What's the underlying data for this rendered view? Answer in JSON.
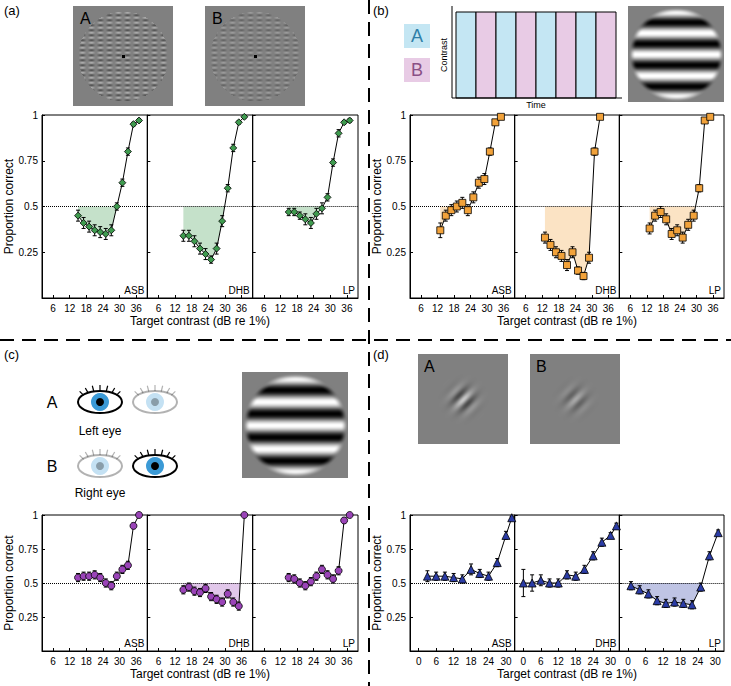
{
  "panels": [
    {
      "label": "(a)",
      "x_label": "Target contrast (dB re 1%)",
      "y_label": "Proportion correct",
      "inset_texts": [
        "A",
        "B"
      ]
    },
    {
      "label": "(b)",
      "x_label": "Target contrast (dB re 1%)",
      "y_label": "Proportion correct",
      "inset_texts": [
        "A",
        "B",
        "Contrast",
        "Time"
      ]
    },
    {
      "label": "(c)",
      "x_label": "Target contrast (dB re 1%)",
      "y_label": "Proportion correct",
      "inset_texts": [
        "A",
        "Left eye",
        "B",
        "Right eye"
      ]
    },
    {
      "label": "(d)",
      "x_label": "Target contrast (dB re 1%)",
      "y_label": "Proportion correct",
      "inset_texts": [
        "A",
        "B"
      ]
    }
  ],
  "chart_data": [
    {
      "panel": "(a)",
      "type": "line",
      "title": "ASB",
      "color": "#3f9b4f",
      "marker": "diamond",
      "x": [
        15,
        17,
        19,
        21,
        23,
        25,
        27,
        29,
        31,
        33,
        35,
        37
      ],
      "values": [
        0.45,
        0.41,
        0.39,
        0.37,
        0.36,
        0.35,
        0.37,
        0.5,
        0.63,
        0.8,
        0.95,
        0.97
      ],
      "errors": [
        0.03,
        0.03,
        0.03,
        0.03,
        0.03,
        0.03,
        0.03,
        0.02,
        0.02,
        0.02,
        0.01,
        0.01
      ],
      "reference_line": 0.5,
      "shade_below": 0.5,
      "xlim": [
        2,
        40
      ],
      "xticks": [
        6,
        12,
        18,
        24,
        30,
        36
      ],
      "ylim": [
        0,
        1
      ],
      "yticks": [
        0.25,
        0.5,
        0.75,
        1
      ]
    },
    {
      "panel": "(a)",
      "type": "line",
      "title": "DHB",
      "color": "#3f9b4f",
      "marker": "diamond",
      "x": [
        15,
        17,
        19,
        21,
        23,
        25,
        27,
        29,
        31,
        33,
        35,
        37
      ],
      "values": [
        0.34,
        0.34,
        0.31,
        0.27,
        0.24,
        0.21,
        0.27,
        0.42,
        0.6,
        0.82,
        0.96,
        0.99
      ],
      "errors": [
        0.03,
        0.03,
        0.03,
        0.03,
        0.03,
        0.02,
        0.03,
        0.03,
        0.02,
        0.02,
        0.01,
        0.01
      ],
      "reference_line": 0.5,
      "shade_below": 0.5,
      "xlim": [
        2,
        40
      ],
      "xticks": [
        6,
        12,
        18,
        24,
        30,
        36
      ],
      "ylim": [
        0,
        1
      ],
      "yticks": [
        0.25,
        0.5,
        0.75,
        1
      ]
    },
    {
      "panel": "(a)",
      "type": "line",
      "title": "LP",
      "color": "#3f9b4f",
      "marker": "diamond",
      "x": [
        15,
        17,
        19,
        21,
        23,
        25,
        27,
        29,
        31,
        33,
        35,
        37
      ],
      "values": [
        0.47,
        0.47,
        0.45,
        0.43,
        0.41,
        0.46,
        0.49,
        0.55,
        0.74,
        0.9,
        0.96,
        0.97
      ],
      "errors": [
        0.02,
        0.02,
        0.02,
        0.03,
        0.03,
        0.03,
        0.03,
        0.02,
        0.02,
        0.02,
        0.01,
        0.01
      ],
      "reference_line": 0.5,
      "shade_below": 0.5,
      "xlim": [
        2,
        40
      ],
      "xticks": [
        6,
        12,
        18,
        24,
        30,
        36
      ],
      "ylim": [
        0,
        1
      ],
      "yticks": [
        0.25,
        0.5,
        0.75,
        1
      ]
    },
    {
      "panel": "(b)",
      "type": "line",
      "title": "ASB",
      "color": "#f2a23a",
      "marker": "square",
      "x": [
        13,
        15,
        17,
        19,
        21,
        23,
        25,
        27,
        29,
        31,
        33,
        35
      ],
      "values": [
        0.37,
        0.45,
        0.48,
        0.5,
        0.52,
        0.48,
        0.55,
        0.63,
        0.65,
        0.8,
        0.96,
        0.99
      ],
      "errors": [
        0.04,
        0.03,
        0.03,
        0.03,
        0.03,
        0.03,
        0.03,
        0.03,
        0.03,
        0.02,
        0.01,
        0.01
      ],
      "reference_line": 0.5,
      "shade_below": 0.5,
      "xlim": [
        2,
        40
      ],
      "xticks": [
        6,
        12,
        18,
        24,
        30,
        36
      ],
      "ylim": [
        0,
        1
      ],
      "yticks": [
        0.25,
        0.5,
        0.75,
        1
      ]
    },
    {
      "panel": "(b)",
      "type": "line",
      "title": "DHB",
      "color": "#f2a23a",
      "marker": "square",
      "x": [
        13,
        15,
        17,
        19,
        21,
        23,
        25,
        27,
        29,
        31,
        33
      ],
      "values": [
        0.33,
        0.29,
        0.25,
        0.23,
        0.18,
        0.25,
        0.15,
        0.12,
        0.22,
        0.8,
        0.99
      ],
      "errors": [
        0.03,
        0.03,
        0.03,
        0.03,
        0.03,
        0.03,
        0.02,
        0.02,
        0.03,
        0.02,
        0.01
      ],
      "reference_line": 0.5,
      "shade_below": 0.5,
      "xlim": [
        2,
        40
      ],
      "xticks": [
        6,
        12,
        18,
        24,
        30,
        36
      ],
      "ylim": [
        0,
        1
      ],
      "yticks": [
        0.25,
        0.5,
        0.75,
        1
      ]
    },
    {
      "panel": "(b)",
      "type": "line",
      "title": "LP",
      "color": "#f2a23a",
      "marker": "square",
      "x": [
        13,
        15,
        17,
        19,
        21,
        23,
        25,
        27,
        29,
        31,
        33,
        35
      ],
      "values": [
        0.38,
        0.45,
        0.47,
        0.43,
        0.35,
        0.37,
        0.33,
        0.4,
        0.45,
        0.6,
        0.97,
        0.99
      ],
      "errors": [
        0.03,
        0.03,
        0.03,
        0.03,
        0.03,
        0.03,
        0.03,
        0.03,
        0.03,
        0.02,
        0.01,
        0.01
      ],
      "reference_line": 0.5,
      "shade_below": 0.5,
      "xlim": [
        2,
        40
      ],
      "xticks": [
        6,
        12,
        18,
        24,
        30,
        36
      ],
      "ylim": [
        0,
        1
      ],
      "yticks": [
        0.25,
        0.5,
        0.75,
        1
      ]
    },
    {
      "panel": "(c)",
      "type": "line",
      "title": "ASB",
      "color": "#9a44b8",
      "marker": "circle",
      "x": [
        15,
        17,
        19,
        21,
        23,
        25,
        27,
        29,
        31,
        33,
        35,
        37
      ],
      "values": [
        0.54,
        0.55,
        0.55,
        0.56,
        0.54,
        0.5,
        0.48,
        0.55,
        0.6,
        0.63,
        0.92,
        1.0
      ],
      "errors": [
        0.03,
        0.03,
        0.03,
        0.03,
        0.03,
        0.03,
        0.03,
        0.03,
        0.03,
        0.03,
        0.02,
        0.01
      ],
      "reference_line": 0.5,
      "xlim": [
        2,
        40
      ],
      "xticks": [
        6,
        12,
        18,
        24,
        30,
        36
      ],
      "ylim": [
        0,
        1
      ],
      "yticks": [
        0.25,
        0.5,
        0.75,
        1
      ]
    },
    {
      "panel": "(c)",
      "type": "line",
      "title": "DHB",
      "color": "#9a44b8",
      "marker": "circle",
      "x": [
        15,
        17,
        19,
        21,
        23,
        25,
        27,
        29,
        31,
        33,
        35,
        37
      ],
      "values": [
        0.45,
        0.47,
        0.44,
        0.43,
        0.46,
        0.4,
        0.38,
        0.36,
        0.42,
        0.36,
        0.33,
        1.0
      ],
      "errors": [
        0.03,
        0.03,
        0.03,
        0.03,
        0.03,
        0.03,
        0.03,
        0.03,
        0.03,
        0.03,
        0.03,
        0.01
      ],
      "reference_line": 0.5,
      "shade_below": 0.5,
      "xlim": [
        2,
        40
      ],
      "xticks": [
        6,
        12,
        18,
        24,
        30,
        36
      ],
      "ylim": [
        0,
        1
      ],
      "yticks": [
        0.25,
        0.5,
        0.75,
        1
      ]
    },
    {
      "panel": "(c)",
      "type": "line",
      "title": "LP",
      "color": "#9a44b8",
      "marker": "circle",
      "x": [
        15,
        17,
        19,
        21,
        23,
        25,
        27,
        29,
        31,
        33,
        35,
        37
      ],
      "values": [
        0.54,
        0.53,
        0.5,
        0.48,
        0.51,
        0.55,
        0.6,
        0.56,
        0.53,
        0.59,
        0.96,
        1.0
      ],
      "errors": [
        0.03,
        0.03,
        0.03,
        0.03,
        0.03,
        0.03,
        0.03,
        0.03,
        0.03,
        0.03,
        0.02,
        0.01
      ],
      "reference_line": 0.5,
      "xlim": [
        2,
        40
      ],
      "xticks": [
        6,
        12,
        18,
        24,
        30,
        36
      ],
      "ylim": [
        0,
        1
      ],
      "yticks": [
        0.25,
        0.5,
        0.75,
        1
      ]
    },
    {
      "panel": "(d)",
      "type": "line",
      "title": "ASB",
      "color": "#2b3ca6",
      "marker": "triangle",
      "x": [
        3,
        6,
        9,
        12,
        15,
        18,
        21,
        24,
        27,
        30,
        32
      ],
      "values": [
        0.55,
        0.55,
        0.55,
        0.54,
        0.53,
        0.6,
        0.57,
        0.55,
        0.65,
        0.85,
        0.98
      ],
      "errors": [
        0.04,
        0.03,
        0.03,
        0.03,
        0.03,
        0.04,
        0.03,
        0.03,
        0.03,
        0.03,
        0.01
      ],
      "reference_line": 0.5,
      "xlim": [
        -3,
        33
      ],
      "xticks": [
        0,
        6,
        12,
        18,
        24,
        30
      ],
      "ylim": [
        0,
        1
      ],
      "yticks": [
        0.25,
        0.5,
        0.75,
        1
      ]
    },
    {
      "panel": "(d)",
      "type": "line",
      "title": "DHB",
      "color": "#2b3ca6",
      "marker": "triangle",
      "x": [
        0,
        3,
        6,
        9,
        12,
        15,
        18,
        21,
        24,
        27,
        30,
        32
      ],
      "values": [
        0.5,
        0.5,
        0.52,
        0.5,
        0.5,
        0.56,
        0.55,
        0.6,
        0.7,
        0.8,
        0.85,
        0.92
      ],
      "errors": [
        0.1,
        0.06,
        0.04,
        0.03,
        0.03,
        0.03,
        0.03,
        0.03,
        0.03,
        0.03,
        0.02,
        0.02
      ],
      "reference_line": 0.5,
      "xlim": [
        -3,
        33
      ],
      "xticks": [
        0,
        6,
        12,
        18,
        24,
        30
      ],
      "ylim": [
        0,
        1
      ],
      "yticks": [
        0.25,
        0.5,
        0.75,
        1
      ]
    },
    {
      "panel": "(d)",
      "type": "line",
      "title": "LP",
      "color": "#2b3ca6",
      "marker": "triangle",
      "x": [
        1,
        4,
        7,
        10,
        13,
        16,
        19,
        22,
        25,
        28,
        31
      ],
      "values": [
        0.48,
        0.45,
        0.42,
        0.37,
        0.35,
        0.36,
        0.35,
        0.34,
        0.47,
        0.7,
        0.87
      ],
      "errors": [
        0.03,
        0.03,
        0.03,
        0.03,
        0.03,
        0.03,
        0.03,
        0.03,
        0.03,
        0.03,
        0.02
      ],
      "reference_line": 0.5,
      "shade_below": 0.5,
      "xlim": [
        -3,
        33
      ],
      "xticks": [
        0,
        6,
        12,
        18,
        24,
        30
      ],
      "ylim": [
        0,
        1
      ],
      "yticks": [
        0.25,
        0.5,
        0.75,
        1
      ]
    }
  ]
}
